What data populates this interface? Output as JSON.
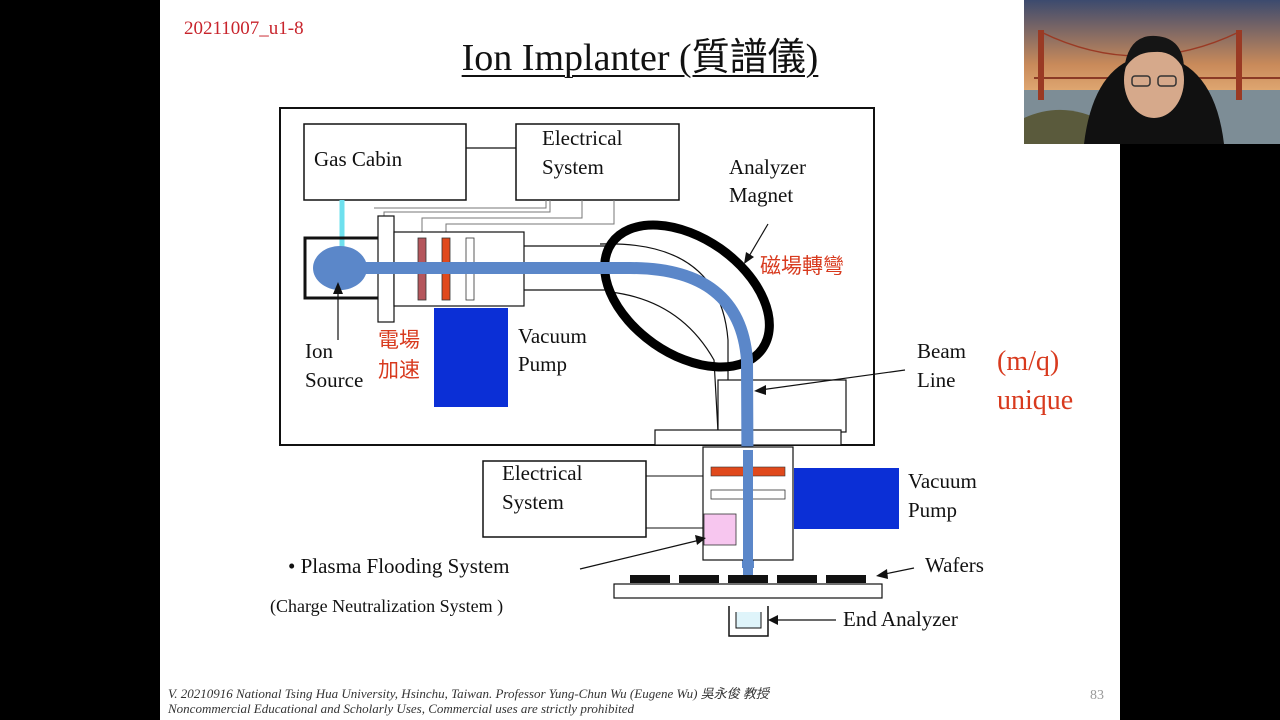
{
  "slide": {
    "date_tag": "20211007_u1-8",
    "title": "Ion Implanter (質譜儀)",
    "page_number": "83",
    "footer_line1": "V. 20210916 National Tsing Hua University, Hsinchu, Taiwan. Professor Yung-Chun Wu (Eugene Wu) 吳永俊 教授",
    "footer_line2": "Noncommercial Educational and Scholarly Uses, Commercial uses are strictly prohibited"
  },
  "diagram": {
    "gas_cabin": "Gas Cabin",
    "electrical_system_1": [
      "Electrical",
      "System"
    ],
    "analyzer_magnet": [
      "Analyzer",
      "Magnet"
    ],
    "magnet_turning": "磁場轉彎",
    "ion_source": [
      "Ion",
      "Source"
    ],
    "field_acceleration": [
      "電場",
      "加速"
    ],
    "vacuum_pump_1": [
      "Vacuum",
      "Pump"
    ],
    "beam_line": [
      "Beam",
      "Line"
    ],
    "mq_unique": [
      "(m/q)",
      "unique"
    ],
    "electrical_system_2": [
      "Electrical",
      "System"
    ],
    "vacuum_pump_2": [
      "Vacuum",
      "Pump"
    ],
    "plasma_flooding": "• Plasma Flooding  System",
    "charge_neutralization": "(Charge Neutralization System )",
    "wafers": "Wafers",
    "end_analyzer": "End Analyzer"
  },
  "colors": {
    "beam": "#5b87c9",
    "pump": "#0b2fd6",
    "red_text": "#d83a1e",
    "date_red": "#c8242c",
    "electrode_red": "#e0491c",
    "electrode_dark": "#b5565c",
    "plasma_pink": "#f7c6ef",
    "gas_line": "#6ee0ee"
  },
  "webcam": {
    "content": "presenter video feed"
  }
}
